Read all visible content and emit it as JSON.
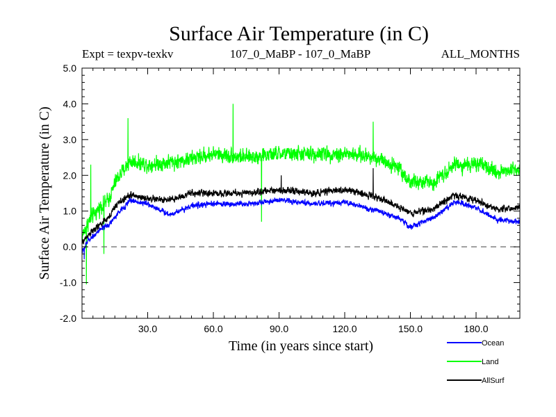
{
  "chart_data": {
    "type": "line",
    "title": "Surface Air Temperature (in C)",
    "subtitle_left": "Expt = texpv-texkv",
    "subtitle_center": "107_0_MaBP - 107_0_MaBP",
    "subtitle_right": "ALL_MONTHS",
    "xlabel": "Time (in years since start)",
    "ylabel": "Surface Air Temperature (in C)",
    "xlim": [
      0,
      200
    ],
    "ylim": [
      -2.0,
      5.0
    ],
    "x_ticks": [
      30,
      60,
      90,
      120,
      150,
      180
    ],
    "x_tick_labels": [
      "30.0",
      "60.0",
      "90.0",
      "120.0",
      "150.0",
      "180.0"
    ],
    "y_ticks": [
      -2,
      -1,
      0,
      1,
      2,
      3,
      4,
      5
    ],
    "y_tick_labels": [
      "-2.0",
      "-1.0",
      "0.0",
      "1.0",
      "2.0",
      "3.0",
      "4.0",
      "5.0"
    ],
    "zero_line": 0.0,
    "series_note": "Monthly time series; each series below gives the approximate mean level, noise half-amplitude and a few extreme spikes read from the plot.",
    "series": [
      {
        "name": "Land",
        "color": "#00ff00",
        "anchors": [
          [
            0,
            0.3
          ],
          [
            3,
            0.7
          ],
          [
            8,
            1.1
          ],
          [
            12,
            1.3
          ],
          [
            16,
            1.9
          ],
          [
            22,
            2.4
          ],
          [
            30,
            2.3
          ],
          [
            45,
            2.4
          ],
          [
            60,
            2.6
          ],
          [
            75,
            2.5
          ],
          [
            90,
            2.6
          ],
          [
            105,
            2.6
          ],
          [
            120,
            2.6
          ],
          [
            135,
            2.5
          ],
          [
            145,
            2.2
          ],
          [
            150,
            1.8
          ],
          [
            160,
            1.8
          ],
          [
            170,
            2.3
          ],
          [
            180,
            2.3
          ],
          [
            190,
            2.1
          ],
          [
            200,
            2.2
          ]
        ],
        "noise": 0.45,
        "spikes": [
          [
            2,
            -1.05
          ],
          [
            10,
            -0.2
          ],
          [
            4,
            2.3
          ],
          [
            21,
            3.6
          ],
          [
            69,
            4.0
          ],
          [
            82,
            0.7
          ],
          [
            133,
            3.5
          ]
        ]
      },
      {
        "name": "AllSurf",
        "color": "#000000",
        "anchors": [
          [
            0,
            0.1
          ],
          [
            3,
            0.35
          ],
          [
            8,
            0.6
          ],
          [
            12,
            0.8
          ],
          [
            16,
            1.2
          ],
          [
            22,
            1.45
          ],
          [
            30,
            1.35
          ],
          [
            40,
            1.3
          ],
          [
            50,
            1.5
          ],
          [
            60,
            1.5
          ],
          [
            75,
            1.5
          ],
          [
            90,
            1.6
          ],
          [
            105,
            1.5
          ],
          [
            120,
            1.6
          ],
          [
            135,
            1.4
          ],
          [
            145,
            1.1
          ],
          [
            150,
            0.95
          ],
          [
            160,
            1.05
          ],
          [
            170,
            1.45
          ],
          [
            180,
            1.3
          ],
          [
            190,
            1.05
          ],
          [
            200,
            1.1
          ]
        ],
        "noise": 0.2,
        "spikes": [
          [
            133,
            2.2
          ],
          [
            91,
            2.0
          ]
        ]
      },
      {
        "name": "Ocean",
        "color": "#0000ff",
        "anchors": [
          [
            0,
            -0.15
          ],
          [
            3,
            0.2
          ],
          [
            8,
            0.45
          ],
          [
            12,
            0.6
          ],
          [
            16,
            0.9
          ],
          [
            22,
            1.3
          ],
          [
            30,
            1.2
          ],
          [
            40,
            0.9
          ],
          [
            50,
            1.15
          ],
          [
            60,
            1.2
          ],
          [
            75,
            1.2
          ],
          [
            90,
            1.3
          ],
          [
            105,
            1.2
          ],
          [
            120,
            1.25
          ],
          [
            135,
            1.0
          ],
          [
            145,
            0.8
          ],
          [
            150,
            0.55
          ],
          [
            160,
            0.8
          ],
          [
            170,
            1.25
          ],
          [
            180,
            1.1
          ],
          [
            190,
            0.75
          ],
          [
            200,
            0.7
          ]
        ],
        "noise": 0.16,
        "spikes": [
          [
            1,
            -0.35
          ]
        ]
      }
    ],
    "legend": {
      "position": "bottom-right",
      "entries": [
        {
          "label": "Ocean",
          "color": "#0000ff"
        },
        {
          "label": "Land",
          "color": "#00ff00"
        },
        {
          "label": "AllSurf",
          "color": "#000000"
        }
      ]
    }
  }
}
